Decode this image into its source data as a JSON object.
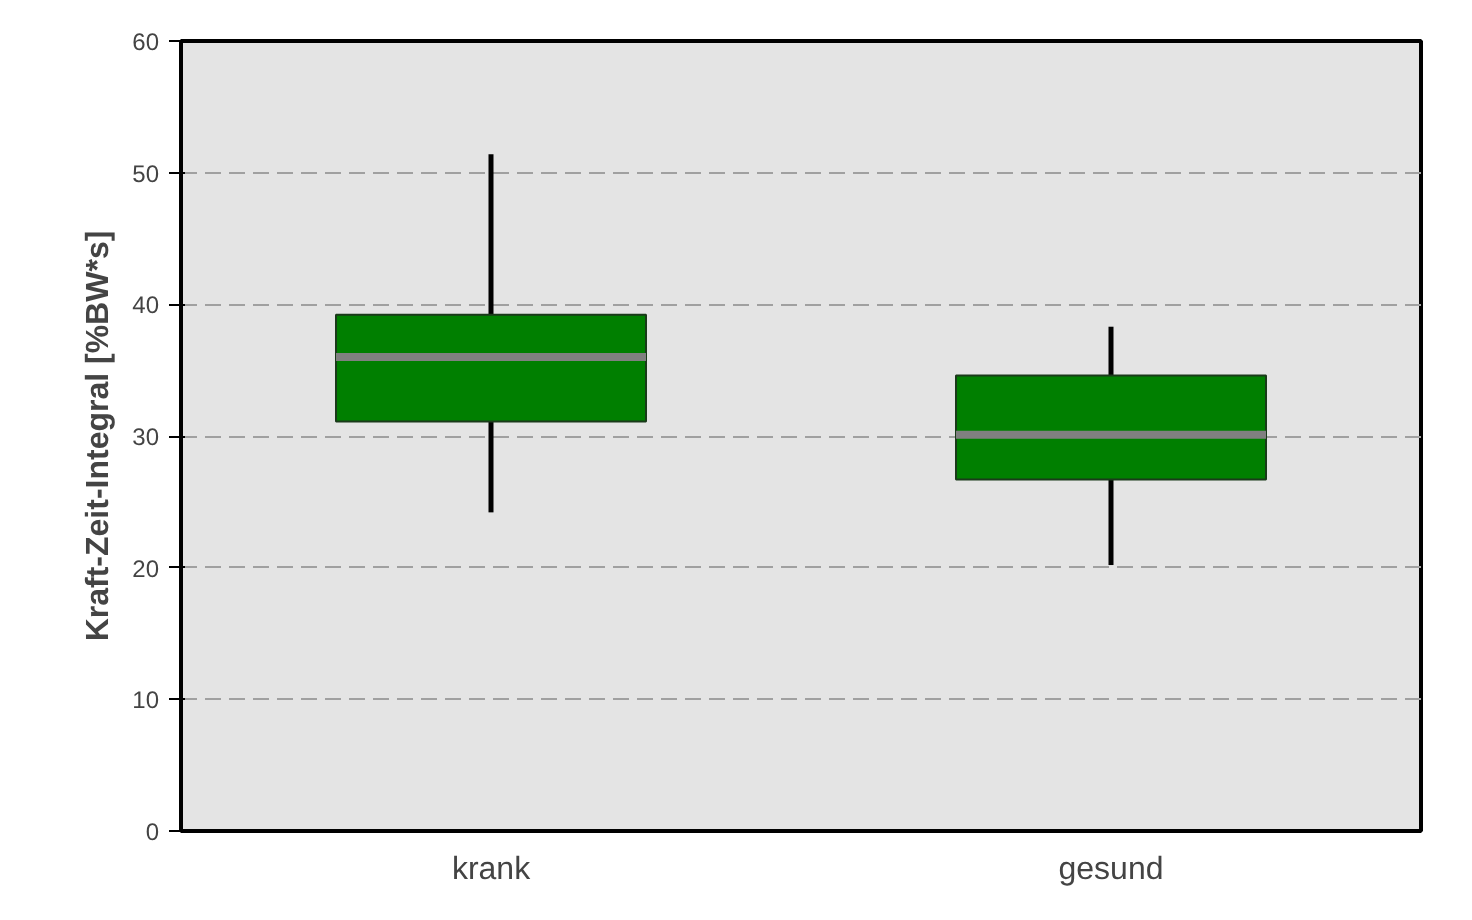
{
  "chart_data": {
    "type": "box",
    "ylabel": "Kraft-Zeit-Integral [%BW*s]",
    "categories": [
      "krank",
      "gesund"
    ],
    "boxes": [
      {
        "low": 24.2,
        "q1": 31.1,
        "median": 36.0,
        "q3": 39.2,
        "high": 51.4
      },
      {
        "low": 20.2,
        "q1": 26.7,
        "median": 30.1,
        "q3": 34.6,
        "high": 38.3
      }
    ],
    "color": "#007f00",
    "ylim": [
      0,
      60
    ],
    "yticks": [
      0,
      10,
      20,
      30,
      40,
      50,
      60
    ],
    "grid": "y"
  }
}
